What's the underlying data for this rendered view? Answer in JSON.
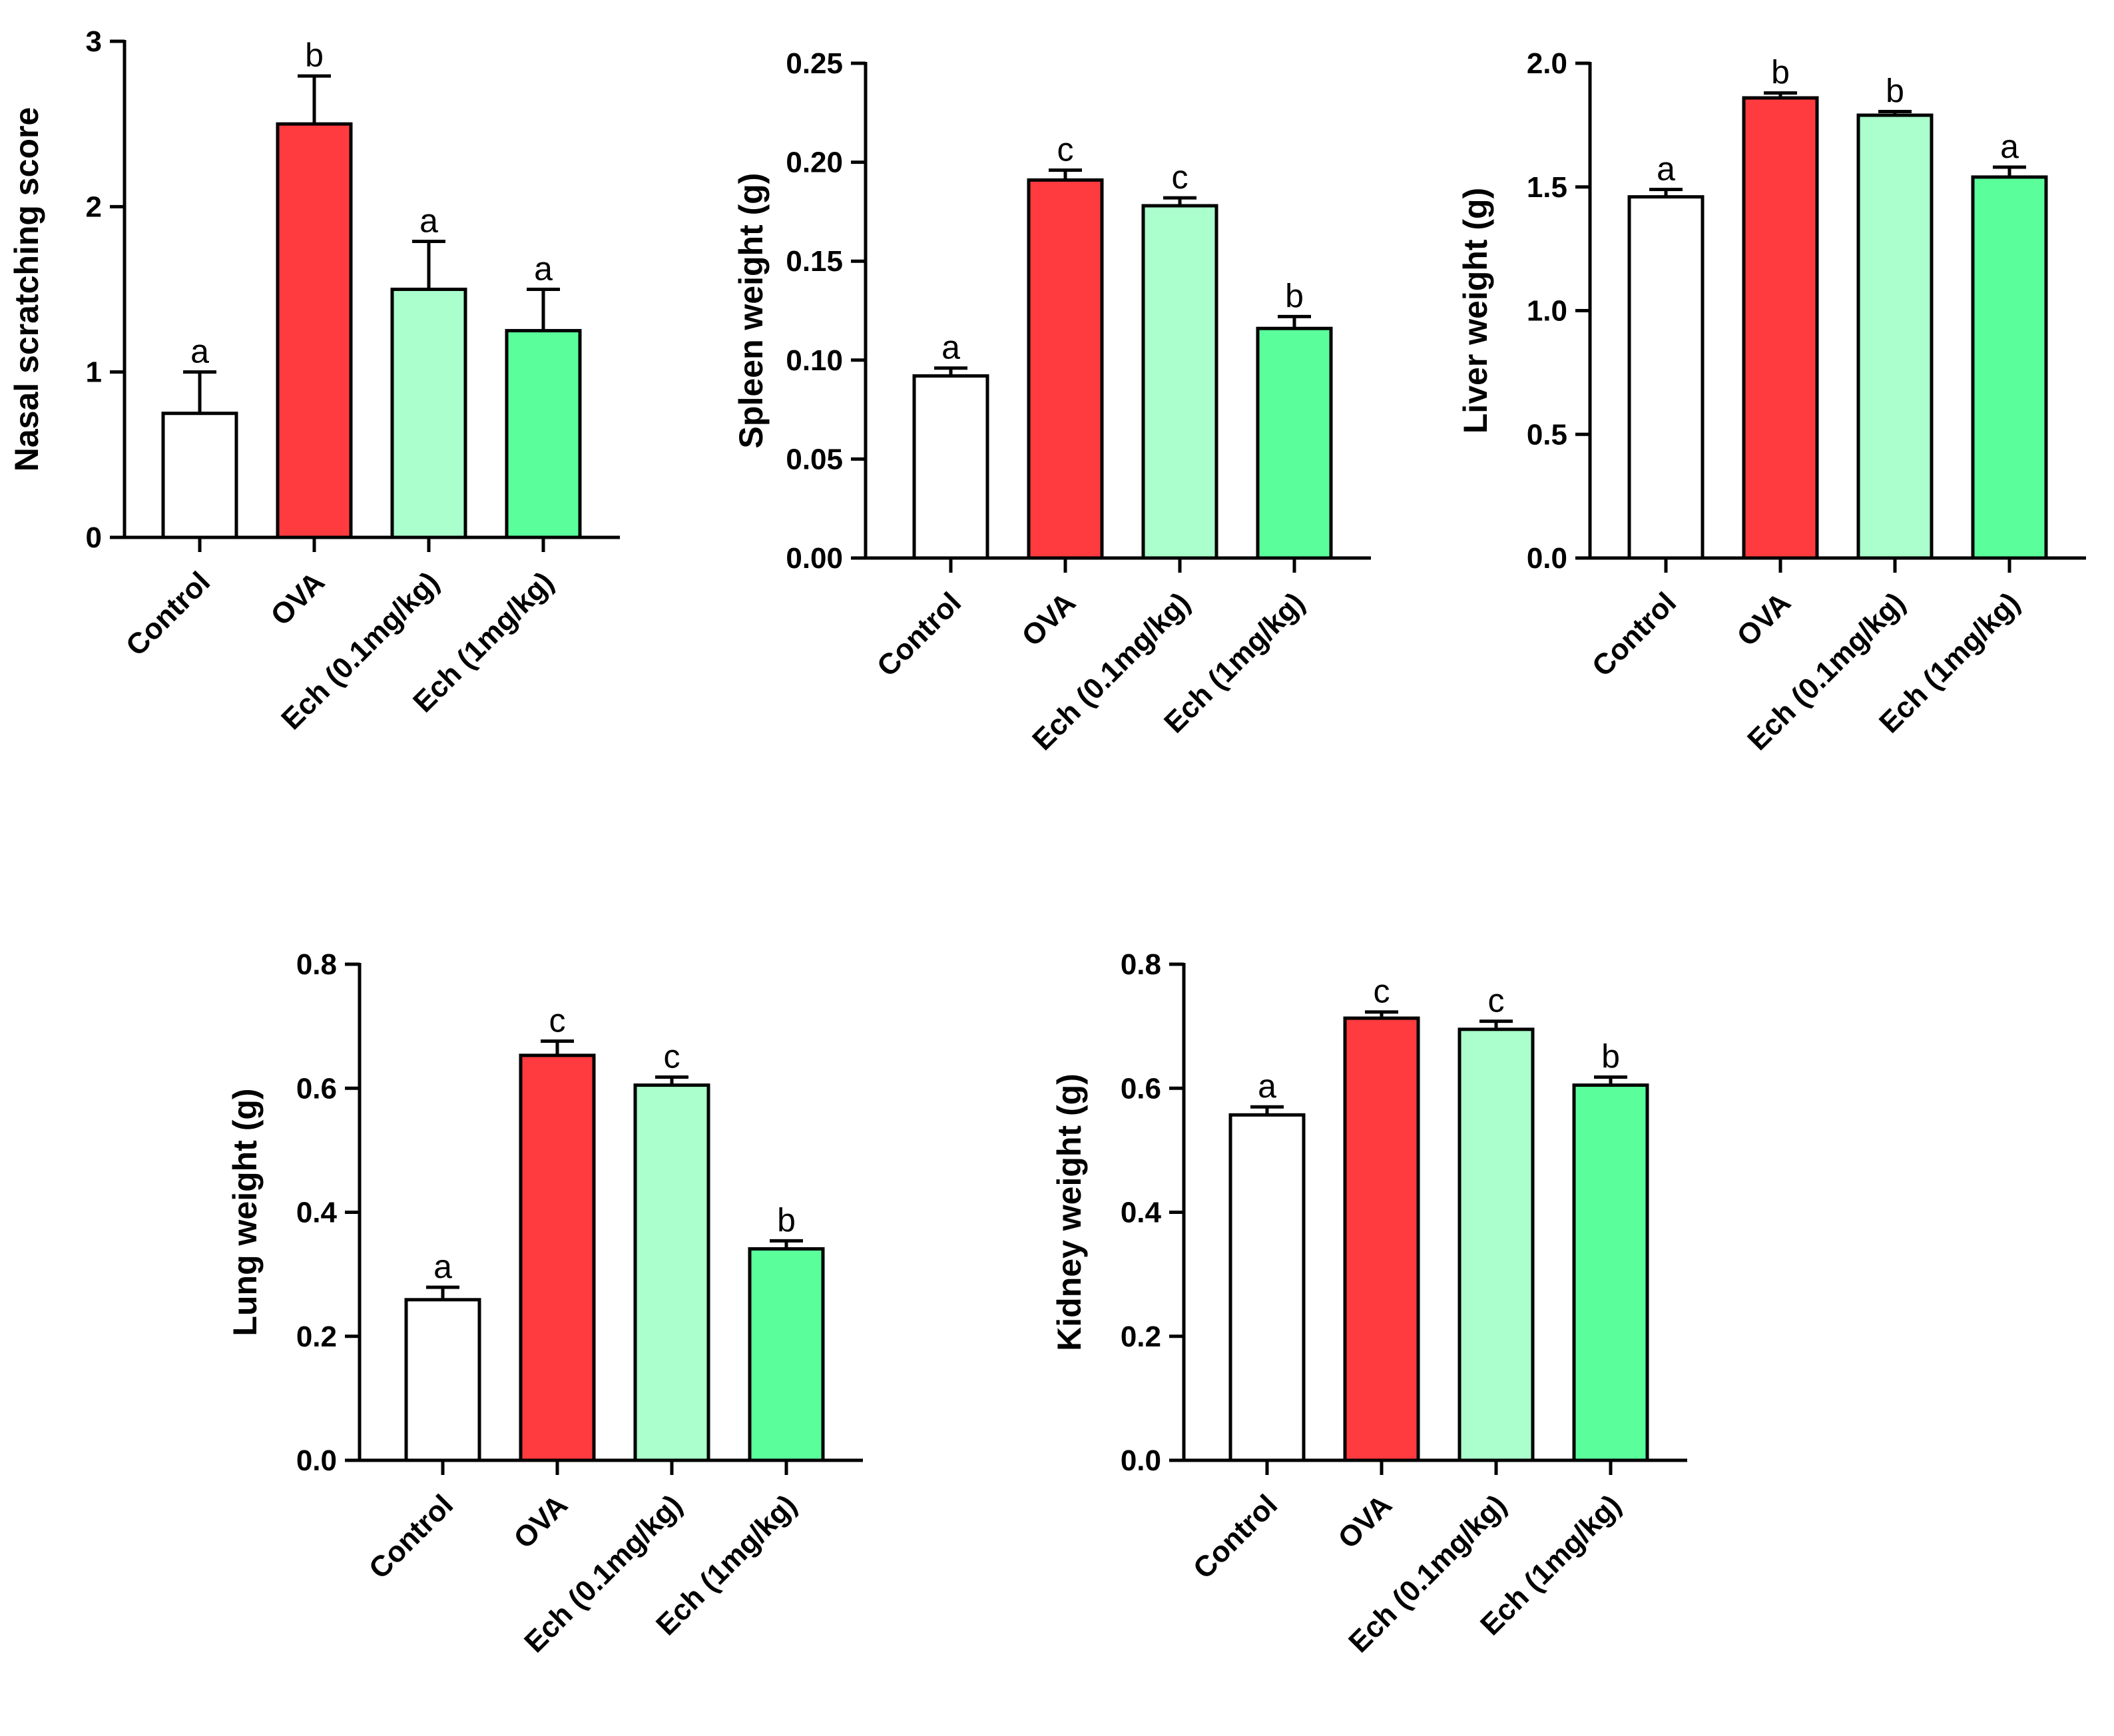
{
  "chart_data": [
    {
      "type": "bar",
      "ylabel": "Nasal scratching score",
      "categories": [
        "Control",
        "OVA",
        "Ech (0.1mg/kg)",
        "Ech (1mg/kg)"
      ],
      "values": [
        0.75,
        2.5,
        1.5,
        1.25
      ],
      "errors": [
        0.25,
        0.29,
        0.29,
        0.25
      ],
      "letters": [
        "a",
        "b",
        "a",
        "a"
      ],
      "ylim": [
        0,
        3
      ],
      "yticks": [
        "0",
        "1",
        "2",
        "3"
      ],
      "ytick_values": [
        0,
        1,
        2,
        3
      ]
    },
    {
      "type": "bar",
      "ylabel": "Spleen weight (g)",
      "categories": [
        "Control",
        "OVA",
        "Ech (0.1mg/kg)",
        "Ech (1mg/kg)"
      ],
      "values": [
        0.092,
        0.191,
        0.178,
        0.116
      ],
      "errors": [
        0.004,
        0.005,
        0.004,
        0.006
      ],
      "letters": [
        "a",
        "c",
        "c",
        "b"
      ],
      "ylim": [
        0,
        0.25
      ],
      "yticks": [
        "0.00",
        "0.05",
        "0.10",
        "0.15",
        "0.20",
        "0.25"
      ],
      "ytick_values": [
        0,
        0.05,
        0.1,
        0.15,
        0.2,
        0.25
      ]
    },
    {
      "type": "bar",
      "ylabel": "Liver weight (g)",
      "categories": [
        "Control",
        "OVA",
        "Ech (0.1mg/kg)",
        "Ech (1mg/kg)"
      ],
      "values": [
        1.46,
        1.86,
        1.79,
        1.54
      ],
      "errors": [
        0.03,
        0.02,
        0.015,
        0.04
      ],
      "letters": [
        "a",
        "b",
        "b",
        "a"
      ],
      "ylim": [
        0,
        2.0
      ],
      "yticks": [
        "0.0",
        "0.5",
        "1.0",
        "1.5",
        "2.0"
      ],
      "ytick_values": [
        0,
        0.5,
        1.0,
        1.5,
        2.0
      ]
    },
    {
      "type": "bar",
      "ylabel": "Lung weight (g)",
      "categories": [
        "Control",
        "OVA",
        "Ech (0.1mg/kg)",
        "Ech (1mg/kg)"
      ],
      "values": [
        0.259,
        0.653,
        0.605,
        0.341
      ],
      "errors": [
        0.02,
        0.023,
        0.013,
        0.013
      ],
      "letters": [
        "a",
        "c",
        "c",
        "b"
      ],
      "ylim": [
        0,
        0.8
      ],
      "yticks": [
        "0.0",
        "0.2",
        "0.4",
        "0.6",
        "0.8"
      ],
      "ytick_values": [
        0,
        0.2,
        0.4,
        0.6,
        0.8
      ]
    },
    {
      "type": "bar",
      "ylabel": "Kidney weight (g)",
      "categories": [
        "Control",
        "OVA",
        "Ech (0.1mg/kg)",
        "Ech (1mg/kg)"
      ],
      "values": [
        0.557,
        0.713,
        0.695,
        0.605
      ],
      "errors": [
        0.013,
        0.01,
        0.013,
        0.013
      ],
      "letters": [
        "a",
        "c",
        "c",
        "b"
      ],
      "ylim": [
        0,
        0.8
      ],
      "yticks": [
        "0.0",
        "0.2",
        "0.4",
        "0.6",
        "0.8"
      ],
      "ytick_values": [
        0,
        0.2,
        0.4,
        0.6,
        0.8
      ]
    }
  ],
  "colors": {
    "bar_fills": [
      "#ffffff",
      "#ff3b3f",
      "#aaffcc",
      "#5aff9b"
    ],
    "stroke": "#000000"
  }
}
